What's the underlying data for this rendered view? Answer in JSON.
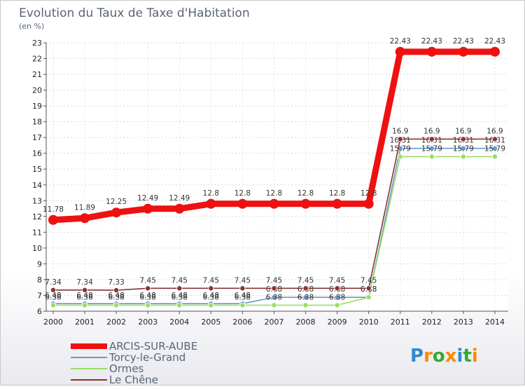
{
  "chart_data": {
    "type": "line",
    "title": "Evolution du Taux de Taxe d'Habitation",
    "subtitle": "(en %)",
    "xlabel": "",
    "ylabel": "",
    "x": [
      "2000",
      "2001",
      "2002",
      "2003",
      "2004",
      "2005",
      "2006",
      "2007",
      "2008",
      "2009",
      "2010",
      "2011",
      "2012",
      "2013",
      "2014"
    ],
    "ylim": [
      6,
      23
    ],
    "yticks": [
      "6",
      "7",
      "8",
      "9",
      "10",
      "11",
      "12",
      "13",
      "14",
      "15",
      "16",
      "17",
      "18",
      "19",
      "20",
      "21",
      "22",
      "23"
    ],
    "grid": true,
    "series": [
      {
        "name": "ARCIS-SUR-AUBE",
        "color": "#ee1111",
        "values": [
          11.78,
          11.89,
          12.25,
          12.49,
          12.49,
          12.8,
          12.8,
          12.8,
          12.8,
          12.8,
          12.8,
          22.43,
          22.43,
          22.43,
          22.43
        ],
        "labels": [
          "11.78",
          "11.89",
          "12.25",
          "12.49",
          "12.49",
          "12.8",
          "12.8",
          "12.8",
          "12.8",
          "12.8",
          "12.8",
          "22.43",
          "22.43",
          "22.43",
          "22.43"
        ]
      },
      {
        "name": "Torcy-le-Grand",
        "color": "#6699cc",
        "values": [
          6.48,
          6.48,
          6.48,
          6.48,
          6.48,
          6.48,
          6.48,
          6.88,
          6.88,
          6.88,
          6.88,
          16.31,
          16.31,
          16.31,
          16.31
        ],
        "labels": [
          "6.48",
          "6.48",
          "6.48",
          "6.48",
          "6.48",
          "6.48",
          "6.48",
          "6.88",
          "6.88",
          "6.88",
          "6.88",
          "16.31",
          "16.31",
          "16.31",
          "16.31"
        ]
      },
      {
        "name": "Ormes",
        "color": "#99dd66",
        "values": [
          6.38,
          6.38,
          6.38,
          6.38,
          6.38,
          6.38,
          6.38,
          6.38,
          6.38,
          6.38,
          6.88,
          15.79,
          15.79,
          15.79,
          15.79
        ],
        "labels": [
          "6.38",
          "6.38",
          "6.38",
          "6.38",
          "6.38",
          "6.38",
          "6.38",
          "6.38",
          "6.38",
          "6.38",
          "6.88",
          "15.79",
          "15.79",
          "15.79",
          "15.79"
        ]
      },
      {
        "name": "Le Chêne",
        "color": "#883333",
        "values": [
          7.34,
          7.34,
          7.33,
          7.45,
          7.45,
          7.45,
          7.45,
          7.45,
          7.45,
          7.45,
          7.45,
          16.9,
          16.9,
          16.9,
          16.9
        ],
        "labels": [
          "7.34",
          "7.34",
          "7.33",
          "7.45",
          "7.45",
          "7.45",
          "7.45",
          "7.45",
          "7.45",
          "7.45",
          "7.45",
          "16.9",
          "16.9",
          "16.9",
          "16.9"
        ]
      }
    ],
    "legend_position": "bottom-left"
  },
  "brand": {
    "letters": [
      "P",
      "r",
      "o",
      "x",
      "i",
      "t",
      "i"
    ],
    "colors": [
      "#3388cc",
      "#ff8800",
      "#33aa33",
      "#ff8800",
      "#3388cc",
      "#33aa33",
      "#ff8800"
    ]
  }
}
